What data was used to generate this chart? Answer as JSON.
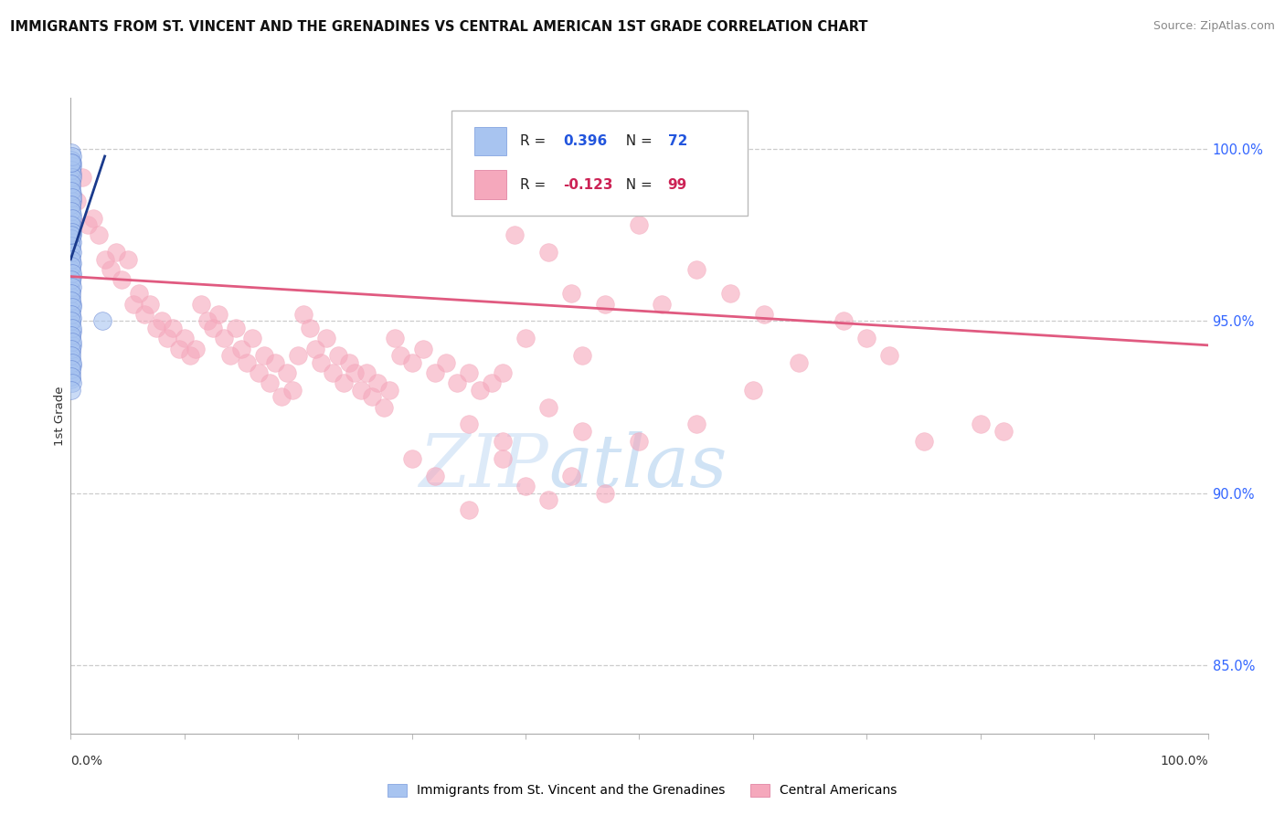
{
  "title": "IMMIGRANTS FROM ST. VINCENT AND THE GRENADINES VS CENTRAL AMERICAN 1ST GRADE CORRELATION CHART",
  "source": "Source: ZipAtlas.com",
  "ylabel": "1st Grade",
  "right_yticks": [
    100.0,
    95.0,
    90.0,
    85.0
  ],
  "right_ytick_labels": [
    "100.0%",
    "95.0%",
    "90.0%",
    "85.0%"
  ],
  "blue_R": 0.396,
  "blue_N": 72,
  "pink_R": -0.123,
  "pink_N": 99,
  "blue_color": "#a8c4f0",
  "pink_color": "#f5a8bc",
  "blue_line_color": "#1a3a8c",
  "pink_line_color": "#e05a80",
  "legend_label_blue": "Immigrants from St. Vincent and the Grenadines",
  "legend_label_pink": "Central Americans",
  "watermark_zip": "ZIP",
  "watermark_atlas": "atlas",
  "blue_points": [
    [
      0.05,
      99.9
    ],
    [
      0.08,
      99.7
    ],
    [
      0.1,
      99.5
    ],
    [
      0.12,
      99.3
    ],
    [
      0.06,
      99.1
    ],
    [
      0.09,
      98.9
    ],
    [
      0.15,
      98.7
    ],
    [
      0.1,
      98.5
    ],
    [
      0.07,
      98.3
    ],
    [
      0.12,
      98.1
    ],
    [
      0.05,
      97.9
    ],
    [
      0.08,
      97.7
    ],
    [
      0.1,
      97.5
    ],
    [
      0.15,
      97.3
    ],
    [
      0.09,
      97.1
    ],
    [
      0.06,
      96.9
    ],
    [
      0.12,
      96.7
    ],
    [
      0.07,
      96.5
    ],
    [
      0.1,
      96.3
    ],
    [
      0.08,
      96.1
    ],
    [
      0.05,
      95.9
    ],
    [
      0.09,
      95.7
    ],
    [
      0.14,
      95.5
    ],
    [
      0.06,
      95.3
    ],
    [
      0.11,
      95.1
    ],
    [
      0.08,
      94.9
    ],
    [
      0.1,
      94.7
    ],
    [
      0.07,
      94.5
    ],
    [
      0.12,
      94.3
    ],
    [
      0.05,
      94.1
    ],
    [
      0.09,
      93.9
    ],
    [
      0.11,
      93.7
    ],
    [
      0.06,
      93.5
    ],
    [
      0.08,
      93.3
    ],
    [
      0.13,
      99.6
    ],
    [
      0.07,
      99.4
    ],
    [
      0.1,
      99.2
    ],
    [
      0.05,
      99.0
    ],
    [
      0.08,
      98.8
    ],
    [
      0.12,
      98.6
    ],
    [
      0.06,
      98.4
    ],
    [
      0.09,
      98.2
    ],
    [
      0.11,
      98.0
    ],
    [
      0.07,
      97.8
    ],
    [
      0.1,
      97.6
    ],
    [
      0.05,
      97.4
    ],
    [
      0.08,
      97.2
    ],
    [
      0.12,
      97.0
    ],
    [
      0.06,
      96.8
    ],
    [
      0.09,
      96.6
    ],
    [
      0.1,
      96.4
    ],
    [
      0.07,
      96.2
    ],
    [
      0.11,
      96.0
    ],
    [
      0.05,
      95.8
    ],
    [
      0.08,
      95.6
    ],
    [
      0.12,
      95.4
    ],
    [
      0.06,
      95.2
    ],
    [
      0.09,
      95.0
    ],
    [
      0.1,
      94.8
    ],
    [
      0.07,
      94.6
    ],
    [
      0.11,
      94.4
    ],
    [
      0.05,
      94.2
    ],
    [
      0.08,
      94.0
    ],
    [
      0.12,
      93.8
    ],
    [
      0.06,
      93.6
    ],
    [
      0.09,
      93.4
    ],
    [
      0.11,
      93.2
    ],
    [
      0.07,
      93.0
    ],
    [
      0.1,
      99.8
    ],
    [
      0.05,
      99.6
    ],
    [
      2.8,
      95.0
    ],
    [
      0.08,
      97.5
    ]
  ],
  "pink_points": [
    [
      0.5,
      98.5
    ],
    [
      1.0,
      99.2
    ],
    [
      1.5,
      97.8
    ],
    [
      2.0,
      98.0
    ],
    [
      2.5,
      97.5
    ],
    [
      3.0,
      96.8
    ],
    [
      3.5,
      96.5
    ],
    [
      4.0,
      97.0
    ],
    [
      4.5,
      96.2
    ],
    [
      5.0,
      96.8
    ],
    [
      5.5,
      95.5
    ],
    [
      6.0,
      95.8
    ],
    [
      6.5,
      95.2
    ],
    [
      7.0,
      95.5
    ],
    [
      7.5,
      94.8
    ],
    [
      8.0,
      95.0
    ],
    [
      8.5,
      94.5
    ],
    [
      9.0,
      94.8
    ],
    [
      9.5,
      94.2
    ],
    [
      10.0,
      94.5
    ],
    [
      10.5,
      94.0
    ],
    [
      11.0,
      94.2
    ],
    [
      11.5,
      95.5
    ],
    [
      12.0,
      95.0
    ],
    [
      12.5,
      94.8
    ],
    [
      13.0,
      95.2
    ],
    [
      13.5,
      94.5
    ],
    [
      14.0,
      94.0
    ],
    [
      14.5,
      94.8
    ],
    [
      15.0,
      94.2
    ],
    [
      15.5,
      93.8
    ],
    [
      16.0,
      94.5
    ],
    [
      16.5,
      93.5
    ],
    [
      17.0,
      94.0
    ],
    [
      17.5,
      93.2
    ],
    [
      18.0,
      93.8
    ],
    [
      18.5,
      92.8
    ],
    [
      19.0,
      93.5
    ],
    [
      19.5,
      93.0
    ],
    [
      20.0,
      94.0
    ],
    [
      20.5,
      95.2
    ],
    [
      21.0,
      94.8
    ],
    [
      21.5,
      94.2
    ],
    [
      22.0,
      93.8
    ],
    [
      22.5,
      94.5
    ],
    [
      23.0,
      93.5
    ],
    [
      23.5,
      94.0
    ],
    [
      24.0,
      93.2
    ],
    [
      24.5,
      93.8
    ],
    [
      25.0,
      93.5
    ],
    [
      25.5,
      93.0
    ],
    [
      26.0,
      93.5
    ],
    [
      26.5,
      92.8
    ],
    [
      27.0,
      93.2
    ],
    [
      27.5,
      92.5
    ],
    [
      28.0,
      93.0
    ],
    [
      28.5,
      94.5
    ],
    [
      29.0,
      94.0
    ],
    [
      30.0,
      93.8
    ],
    [
      31.0,
      94.2
    ],
    [
      32.0,
      93.5
    ],
    [
      33.0,
      93.8
    ],
    [
      34.0,
      93.2
    ],
    [
      35.0,
      93.5
    ],
    [
      36.0,
      93.0
    ],
    [
      37.0,
      93.2
    ],
    [
      38.0,
      93.5
    ],
    [
      39.0,
      97.5
    ],
    [
      40.0,
      94.5
    ],
    [
      42.0,
      97.0
    ],
    [
      44.0,
      95.8
    ],
    [
      45.0,
      94.0
    ],
    [
      47.0,
      95.5
    ],
    [
      50.0,
      97.8
    ],
    [
      52.0,
      95.5
    ],
    [
      55.0,
      96.5
    ],
    [
      58.0,
      95.8
    ],
    [
      61.0,
      95.2
    ],
    [
      64.0,
      93.8
    ],
    [
      68.0,
      95.0
    ],
    [
      70.0,
      94.5
    ],
    [
      72.0,
      94.0
    ],
    [
      75.0,
      91.5
    ],
    [
      80.0,
      92.0
    ],
    [
      82.0,
      91.8
    ],
    [
      35.0,
      92.0
    ],
    [
      38.0,
      91.5
    ],
    [
      42.0,
      92.5
    ],
    [
      45.0,
      91.8
    ],
    [
      30.0,
      91.0
    ],
    [
      32.0,
      90.5
    ],
    [
      35.0,
      89.5
    ],
    [
      38.0,
      91.0
    ],
    [
      40.0,
      90.2
    ],
    [
      42.0,
      89.8
    ],
    [
      44.0,
      90.5
    ],
    [
      47.0,
      90.0
    ],
    [
      50.0,
      91.5
    ],
    [
      55.0,
      92.0
    ],
    [
      60.0,
      93.0
    ]
  ],
  "xlim": [
    0,
    100
  ],
  "ylim": [
    83,
    101.5
  ],
  "blue_trend_x": [
    0.0,
    3.0
  ],
  "blue_trend_y": [
    96.8,
    99.8
  ],
  "pink_trend_x": [
    0.0,
    100.0
  ],
  "pink_trend_y": [
    96.3,
    94.3
  ]
}
